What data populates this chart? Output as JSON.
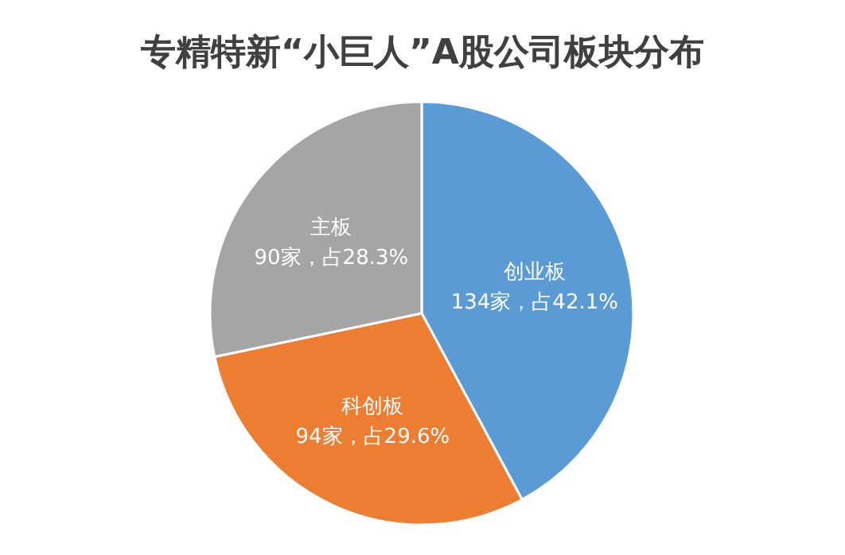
{
  "chart_data": {
    "type": "pie",
    "title": "专精特新“小巨人”A股公司板块分布",
    "categories": [
      "创业板",
      "科创板",
      "主板"
    ],
    "values": [
      134,
      94,
      90
    ],
    "value_labels": [
      "134家，占42.1%",
      "94家，占29.6%",
      "90家，占28.3%"
    ],
    "colors": [
      "#5b9bd5",
      "#ed7d31",
      "#a5a5a5"
    ]
  }
}
